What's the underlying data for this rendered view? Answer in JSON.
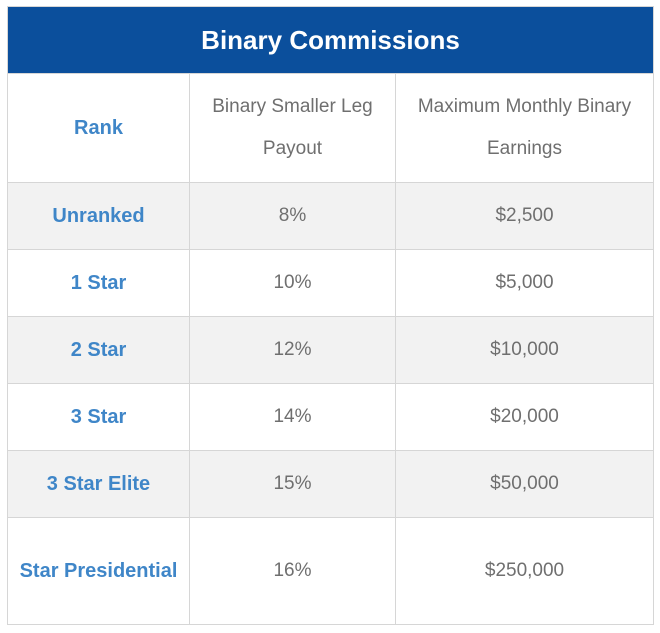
{
  "table": {
    "title": "Binary Commissions",
    "headers": {
      "rank": "Rank",
      "payout": "Binary Smaller Leg Payout",
      "earnings": "Maximum Monthly Binary Earnings"
    },
    "rows": [
      {
        "rank": "Unranked",
        "payout": "8%",
        "earnings": "$2,500"
      },
      {
        "rank": "1 Star",
        "payout": "10%",
        "earnings": "$5,000"
      },
      {
        "rank": "2 Star",
        "payout": "12%",
        "earnings": "$10,000"
      },
      {
        "rank": "3 Star",
        "payout": "14%",
        "earnings": "$20,000"
      },
      {
        "rank": "3 Star Elite",
        "payout": "15%",
        "earnings": "$50,000"
      },
      {
        "rank": "Star Presidential",
        "payout": "16%",
        "earnings": "$250,000"
      }
    ]
  },
  "colors": {
    "header_bg": "#0b4f9c",
    "rank_text": "#3f86c8",
    "value_text": "#6f6f6f",
    "alt_row_bg": "#f2f2f2"
  }
}
